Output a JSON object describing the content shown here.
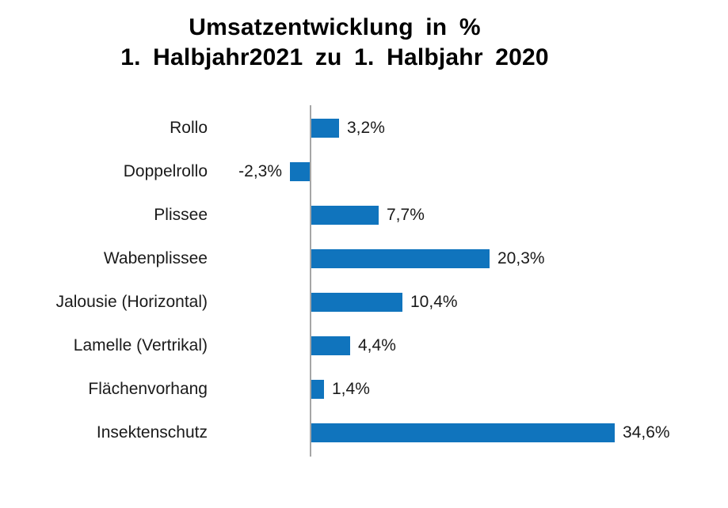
{
  "page": {
    "background": "#ffffff"
  },
  "title": {
    "line1": "Umsatzentwicklung in %",
    "line2": "1. Halbjahr2021 zu 1. Halbjahr 2020"
  },
  "chart_data": {
    "type": "bar",
    "orientation": "horizontal",
    "title": "Umsatzentwicklung in % 1. Halbjahr2021 zu 1. Halbjahr 2020",
    "categories": [
      "Rollo",
      "Doppelrollo",
      "Plissee",
      "Wabenplissee",
      "Jalousie (Horizontal)",
      "Lamelle (Vertrikal)",
      "Flächenvorhang",
      "Insektenschutz"
    ],
    "values": [
      3.2,
      -2.3,
      7.7,
      20.3,
      10.4,
      4.4,
      1.4,
      34.6
    ],
    "value_labels": [
      "3,2%",
      "-2,3%",
      "7,7%",
      "20,3%",
      "10,4%",
      "4,4%",
      "1,4%",
      "34,6%"
    ],
    "unit": "%",
    "xlim": [
      -2.5,
      36
    ],
    "grid": false,
    "legend": false,
    "bar_color": "#1074bd",
    "axis_color": "#a6a6a6",
    "label_color": "#1a1a1a"
  }
}
